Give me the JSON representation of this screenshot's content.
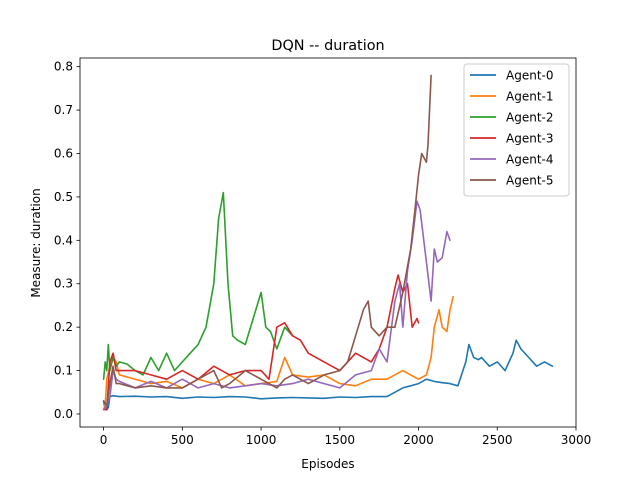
{
  "chart_data": {
    "type": "line",
    "title": "DQN -- duration",
    "xlabel": "Episodes",
    "ylabel": "Measure: duration",
    "xlim": [
      -150,
      3000
    ],
    "ylim": [
      -0.03,
      0.82
    ],
    "xticks": [
      0,
      500,
      1000,
      1500,
      2000,
      2500,
      3000
    ],
    "yticks": [
      0.0,
      0.1,
      0.2,
      0.3,
      0.4,
      0.5,
      0.6,
      0.7,
      0.8
    ],
    "xtick_labels": [
      "0",
      "500",
      "1000",
      "1500",
      "2000",
      "2500",
      "3000"
    ],
    "ytick_labels": [
      "0.0",
      "0.1",
      "0.2",
      "0.3",
      "0.4",
      "0.5",
      "0.6",
      "0.7",
      "0.8"
    ],
    "grid": false,
    "legend_position": "top-right",
    "series": [
      {
        "name": "Agent-0",
        "color": "#1f77b4",
        "x": [
          0,
          10,
          20,
          30,
          40,
          60,
          100,
          200,
          300,
          400,
          500,
          600,
          700,
          800,
          900,
          1000,
          1100,
          1200,
          1300,
          1400,
          1500,
          1600,
          1700,
          1800,
          1900,
          1950,
          2000,
          2050,
          2100,
          2150,
          2200,
          2250,
          2300,
          2320,
          2350,
          2380,
          2400,
          2450,
          2500,
          2550,
          2600,
          2620,
          2650,
          2700,
          2750,
          2800,
          2850
        ],
        "y": [
          0.03,
          0.01,
          0.01,
          0.015,
          0.04,
          0.042,
          0.04,
          0.041,
          0.039,
          0.04,
          0.036,
          0.039,
          0.038,
          0.04,
          0.039,
          0.035,
          0.037,
          0.038,
          0.037,
          0.036,
          0.039,
          0.038,
          0.04,
          0.04,
          0.06,
          0.065,
          0.07,
          0.08,
          0.075,
          0.072,
          0.07,
          0.065,
          0.12,
          0.16,
          0.13,
          0.125,
          0.13,
          0.11,
          0.12,
          0.1,
          0.14,
          0.17,
          0.15,
          0.13,
          0.11,
          0.12,
          0.11
        ]
      },
      {
        "name": "Agent-1",
        "color": "#ff7f0e",
        "x": [
          0,
          10,
          20,
          40,
          60,
          80,
          100,
          200,
          300,
          400,
          500,
          600,
          700,
          800,
          900,
          1000,
          1100,
          1150,
          1200,
          1300,
          1400,
          1500,
          1600,
          1700,
          1800,
          1900,
          1950,
          2000,
          2050,
          2080,
          2100,
          2130,
          2150,
          2180,
          2200,
          2220
        ],
        "y": [
          0.01,
          0.02,
          0.08,
          0.11,
          0.13,
          0.12,
          0.09,
          0.08,
          0.07,
          0.075,
          0.06,
          0.08,
          0.07,
          0.09,
          0.065,
          0.07,
          0.075,
          0.13,
          0.09,
          0.085,
          0.09,
          0.07,
          0.065,
          0.08,
          0.08,
          0.1,
          0.09,
          0.08,
          0.09,
          0.13,
          0.2,
          0.24,
          0.2,
          0.19,
          0.24,
          0.27
        ]
      },
      {
        "name": "Agent-2",
        "color": "#2ca02c",
        "x": [
          0,
          10,
          20,
          30,
          40,
          60,
          80,
          100,
          150,
          200,
          250,
          300,
          350,
          400,
          450,
          500,
          550,
          600,
          650,
          700,
          730,
          760,
          790,
          820,
          850,
          900,
          950,
          1000,
          1030,
          1060,
          1100,
          1150,
          1200
        ],
        "y": [
          0.08,
          0.12,
          0.1,
          0.16,
          0.1,
          0.13,
          0.11,
          0.12,
          0.115,
          0.1,
          0.09,
          0.13,
          0.1,
          0.14,
          0.1,
          0.12,
          0.14,
          0.16,
          0.2,
          0.3,
          0.45,
          0.51,
          0.3,
          0.18,
          0.17,
          0.16,
          0.22,
          0.28,
          0.2,
          0.19,
          0.15,
          0.2,
          0.18
        ]
      },
      {
        "name": "Agent-3",
        "color": "#d62728",
        "x": [
          0,
          20,
          40,
          60,
          80,
          100,
          200,
          300,
          400,
          500,
          600,
          700,
          800,
          900,
          1000,
          1050,
          1100,
          1150,
          1200,
          1250,
          1300,
          1400,
          1500,
          1600,
          1700,
          1750,
          1800,
          1850,
          1870,
          1900,
          1930,
          1960,
          1990,
          2000
        ],
        "y": [
          0.01,
          0.01,
          0.12,
          0.14,
          0.1,
          0.1,
          0.1,
          0.09,
          0.08,
          0.1,
          0.08,
          0.11,
          0.09,
          0.1,
          0.1,
          0.08,
          0.2,
          0.21,
          0.18,
          0.17,
          0.14,
          0.12,
          0.1,
          0.14,
          0.12,
          0.15,
          0.2,
          0.29,
          0.32,
          0.28,
          0.3,
          0.2,
          0.22,
          0.21
        ]
      },
      {
        "name": "Agent-4",
        "color": "#9467bd",
        "x": [
          0,
          20,
          40,
          60,
          80,
          100,
          200,
          300,
          400,
          500,
          600,
          700,
          800,
          900,
          1000,
          1100,
          1200,
          1300,
          1400,
          1500,
          1600,
          1700,
          1750,
          1800,
          1850,
          1880,
          1900,
          1930,
          1960,
          1990,
          2010,
          2050,
          2080,
          2100,
          2120,
          2150,
          2180,
          2200
        ],
        "y": [
          0.01,
          0.02,
          0.04,
          0.1,
          0.08,
          0.075,
          0.06,
          0.075,
          0.06,
          0.08,
          0.06,
          0.07,
          0.06,
          0.065,
          0.07,
          0.065,
          0.07,
          0.08,
          0.07,
          0.06,
          0.09,
          0.1,
          0.15,
          0.12,
          0.26,
          0.3,
          0.2,
          0.33,
          0.4,
          0.49,
          0.47,
          0.35,
          0.26,
          0.38,
          0.35,
          0.36,
          0.42,
          0.4
        ]
      },
      {
        "name": "Agent-5",
        "color": "#8c564b",
        "x": [
          0,
          20,
          40,
          60,
          80,
          100,
          200,
          300,
          400,
          500,
          600,
          700,
          750,
          800,
          900,
          1000,
          1100,
          1150,
          1200,
          1300,
          1400,
          1500,
          1550,
          1600,
          1650,
          1680,
          1700,
          1750,
          1800,
          1850,
          1900,
          1950,
          1980,
          2000,
          2020,
          2050,
          2060,
          2080
        ],
        "y": [
          0.03,
          0.02,
          0.07,
          0.11,
          0.07,
          0.07,
          0.06,
          0.065,
          0.06,
          0.06,
          0.08,
          0.1,
          0.06,
          0.07,
          0.1,
          0.08,
          0.06,
          0.08,
          0.09,
          0.07,
          0.09,
          0.1,
          0.12,
          0.18,
          0.24,
          0.26,
          0.2,
          0.18,
          0.2,
          0.2,
          0.28,
          0.38,
          0.48,
          0.55,
          0.6,
          0.58,
          0.62,
          0.78
        ]
      }
    ]
  }
}
